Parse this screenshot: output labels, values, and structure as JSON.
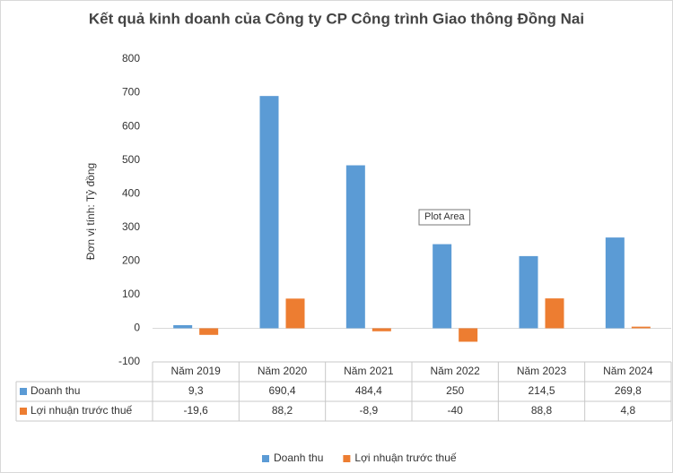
{
  "chart_data": {
    "type": "bar",
    "title": "Kết quả kinh doanh của Công ty CP Công trình Giao thông Đồng Nai",
    "y_label": "Đơn vị tính: Tỷ đồng",
    "tooltip": "Plot Area",
    "categories": [
      "Năm 2019",
      "Năm 2020",
      "Năm 2021",
      "Năm 2022",
      "Năm 2023",
      "Năm 2024"
    ],
    "series": [
      {
        "name": "Doanh thu",
        "color": "#5b9bd5",
        "values": [
          9.3,
          690.4,
          484.4,
          250,
          214.5,
          269.8
        ],
        "value_labels": [
          "9,3",
          "690,4",
          "484,4",
          "250",
          "214,5",
          "269,8"
        ]
      },
      {
        "name": "Lợi nhuận trước thuế",
        "color": "#ed7d31",
        "values": [
          -19.6,
          88.2,
          -8.9,
          -40,
          88.8,
          4.8
        ],
        "value_labels": [
          "-19,6",
          "88,2",
          "-8,9",
          "-40",
          "88,8",
          "4,8"
        ]
      }
    ],
    "ylim": [
      -100,
      800
    ],
    "yticks": [
      800,
      700,
      600,
      500,
      400,
      300,
      200,
      100,
      0,
      -100
    ],
    "grid": false
  }
}
